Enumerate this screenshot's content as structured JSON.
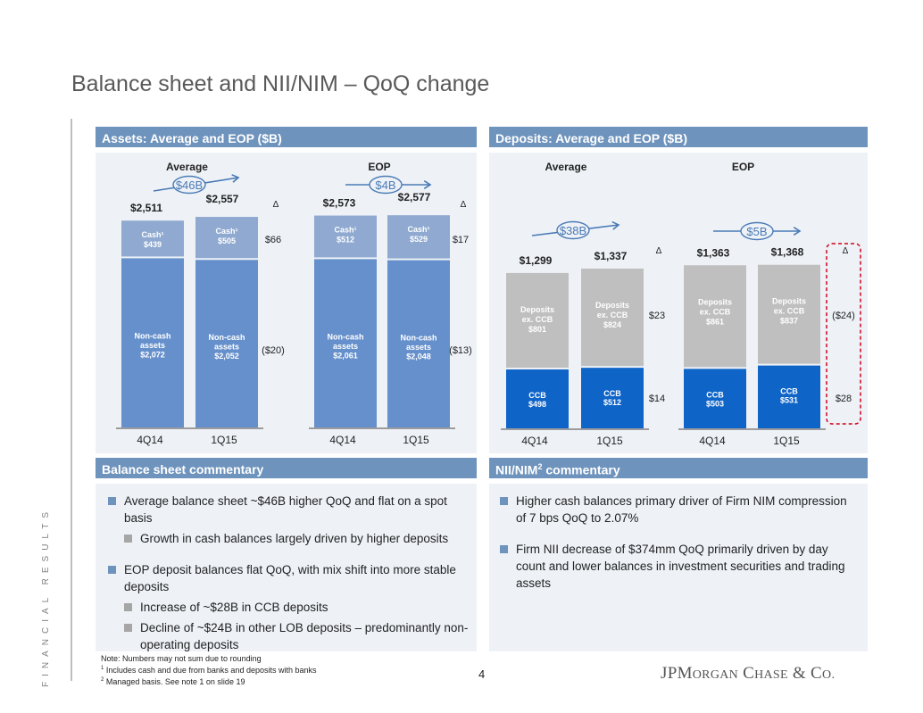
{
  "slide": {
    "title": "Balance sheet and NII/NIM – QoQ change",
    "side_label": "FINANCIAL RESULTS",
    "page_number": "4"
  },
  "assets_panel": {
    "header": "Assets: Average and EOP ($B)"
  },
  "deposits_panel": {
    "header": "Deposits: Average and EOP ($B)"
  },
  "balance_commentary": {
    "header": "Balance sheet commentary",
    "items": [
      {
        "level": 1,
        "text": "Average balance sheet ~$46B higher QoQ and flat on a spot basis"
      },
      {
        "level": 2,
        "text": "Growth in cash balances largely driven by higher deposits"
      },
      {
        "level": 1,
        "text": "EOP deposit balances flat QoQ, with mix shift into more stable deposits"
      },
      {
        "level": 2,
        "text": "Increase of ~$28B in CCB deposits"
      },
      {
        "level": 2,
        "text": "Decline of ~$24B in other LOB deposits – predominantly non-operating deposits"
      }
    ]
  },
  "nii_commentary": {
    "header_main": "NII/NIM",
    "header_sup": "2",
    "header_tail": " commentary",
    "items": [
      {
        "level": 1,
        "text": "Higher cash balances primary driver of Firm NIM compression of 7 bps QoQ to 2.07%"
      },
      {
        "level": 1,
        "text": "Firm NII decrease of $374mm QoQ primarily driven by day count and lower balances in investment securities and trading assets"
      }
    ]
  },
  "footnotes": {
    "note": "Note: Numbers may not sum due to rounding",
    "fn1_mark": "1",
    "fn1": " Includes cash and due from banks and deposits with banks",
    "fn2_mark": "2",
    "fn2": " Managed basis. See note 1 on slide 19"
  },
  "logo": {
    "part1": "JP",
    "part2_cap": "M",
    "part2_sc": "ORGAN",
    "part3_cap": "C",
    "part3_sc": "HASE",
    "part4": "& C",
    "part4_sc": "O."
  },
  "colors": {
    "header_blue": "#6e93bc",
    "panel_bg": "#eef2f7",
    "cash_bar": "#8fa9d0",
    "noncash_bar": "#6690cc",
    "deposits_ex_ccb_bar": "#bfbfbf",
    "ccb_bar": "#0f64c8",
    "highlight_red": "#d0021b"
  },
  "chart_data": [
    {
      "type": "bar",
      "stacked": true,
      "title": "Assets: Average and EOP ($B)",
      "groups": [
        {
          "name": "Average",
          "categories": [
            "4Q14",
            "1Q15"
          ],
          "totals": [
            "$2,511",
            "$2,557"
          ],
          "total_values": [
            2511,
            2557
          ],
          "change_label": "$46B",
          "series": [
            {
              "name": "Non-cash assets",
              "values": [
                2072,
                2052
              ],
              "labels": [
                "$2,072",
                "$2,052"
              ],
              "delta": "($20)"
            },
            {
              "name": "Cash¹",
              "values": [
                439,
                505
              ],
              "labels": [
                "$439",
                "$505"
              ],
              "delta": "$66"
            }
          ]
        },
        {
          "name": "EOP",
          "categories": [
            "4Q14",
            "1Q15"
          ],
          "totals": [
            "$2,573",
            "$2,577"
          ],
          "total_values": [
            2573,
            2577
          ],
          "change_label": "$4B",
          "series": [
            {
              "name": "Non-cash assets",
              "values": [
                2061,
                2048
              ],
              "labels": [
                "$2,061",
                "$2,048"
              ],
              "delta": "($13)"
            },
            {
              "name": "Cash¹",
              "values": [
                512,
                529
              ],
              "labels": [
                "$512",
                "$529"
              ],
              "delta": "$17"
            }
          ]
        }
      ],
      "delta_symbol": "Δ"
    },
    {
      "type": "bar",
      "stacked": true,
      "title": "Deposits: Average and EOP ($B)",
      "groups": [
        {
          "name": "Average",
          "categories": [
            "4Q14",
            "1Q15"
          ],
          "totals": [
            "$1,299",
            "$1,337"
          ],
          "total_values": [
            1299,
            1337
          ],
          "change_label": "$38B",
          "series": [
            {
              "name": "CCB",
              "values": [
                498,
                512
              ],
              "labels": [
                "$498",
                "$512"
              ],
              "delta": "$14"
            },
            {
              "name": "Deposits ex. CCB",
              "values": [
                801,
                824
              ],
              "labels": [
                "$801",
                "$824"
              ],
              "delta": "$23"
            }
          ]
        },
        {
          "name": "EOP",
          "categories": [
            "4Q14",
            "1Q15"
          ],
          "totals": [
            "$1,363",
            "$1,368"
          ],
          "total_values": [
            1363,
            1368
          ],
          "change_label": "$5B",
          "series": [
            {
              "name": "CCB",
              "values": [
                503,
                531
              ],
              "labels": [
                "$503",
                "$531"
              ],
              "delta": "$28"
            },
            {
              "name": "Deposits ex. CCB",
              "values": [
                861,
                837
              ],
              "labels": [
                "$861",
                "$837"
              ],
              "delta": "($24)"
            }
          ]
        }
      ],
      "delta_symbol": "Δ",
      "highlighted_delta_group": "EOP"
    }
  ]
}
